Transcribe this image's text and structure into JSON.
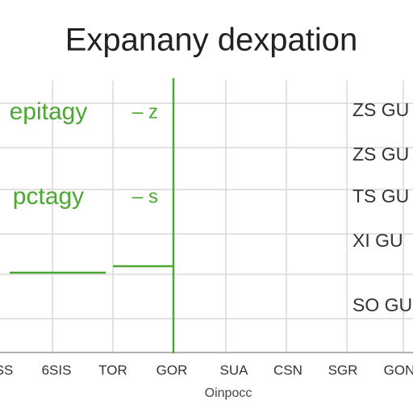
{
  "title": "Expanany dexpation",
  "left_labels": [
    "epitagy",
    "pctagy"
  ],
  "markers": [
    "– z",
    "– s"
  ],
  "right_labels": [
    "ZS GU",
    "ZS GU",
    "TS GU",
    "XI GU",
    "SO GU"
  ],
  "x_labels": [
    "SS",
    "6SIS",
    "TOR",
    "GOR",
    "SUA",
    "CSN",
    "SGR",
    "GON"
  ],
  "x_axis_label": "Oinpocc"
}
